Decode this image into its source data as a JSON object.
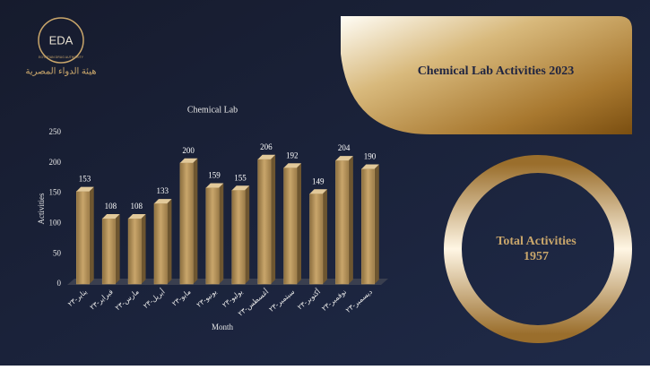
{
  "header": {
    "title": "Chemical Lab Activities 2023",
    "logo_text": "EDA",
    "logo_caption": "EGYPTIAN DRUG AUTHORITY",
    "logo_arabic": "هيئة الدواء المصرية"
  },
  "chart_data": {
    "type": "bar",
    "title": "Chemical Lab",
    "x_label": "Month",
    "y_label": "Activities",
    "categories": [
      "يناير-٢٣",
      "فبراير-٢٣",
      "مارس-٢٣",
      "أبريل-٢٣",
      "مايو-٢٣",
      "يونيو-٢٣",
      "يوليو-٢٣",
      "أغسطس-٢٣",
      "سبتمبر-٢٣",
      "أكتوبر-٢٣",
      "نوفمبر-٢٣",
      "ديسمبر-٢٣"
    ],
    "values": [
      153,
      108,
      108,
      133,
      200,
      159,
      155,
      206,
      192,
      149,
      204,
      190
    ],
    "color": "#b8975f",
    "ylim": [
      0,
      250
    ],
    "yticks": [
      0,
      50,
      100,
      150,
      200,
      250
    ],
    "grid": false
  },
  "summary": {
    "label": "Total Activities",
    "value": 1957
  }
}
